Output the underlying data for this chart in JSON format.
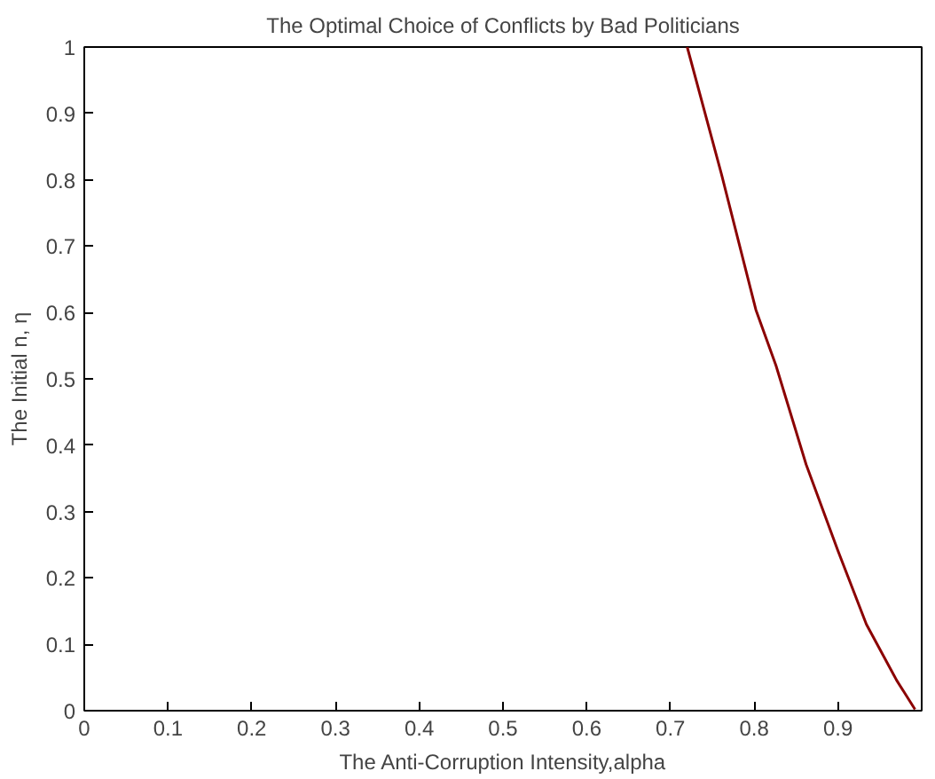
{
  "chart_data": {
    "type": "line",
    "title": "The Optimal Choice of Conflicts by Bad Politicians",
    "xlabel": "The Anti-Corruption Intensity,alpha",
    "ylabel": "The Initial n, η",
    "x": [
      0.72,
      0.761,
      0.802,
      0.826,
      0.862,
      0.9,
      0.934,
      0.97,
      0.992
    ],
    "series": [
      {
        "color": "#8b0000",
        "values": [
          1.0,
          0.808,
          0.604,
          0.52,
          0.371,
          0.241,
          0.13,
          0.046,
          0.002
        ]
      }
    ],
    "xlim": [
      0,
      1
    ],
    "ylim": [
      0,
      1
    ],
    "xticks": [
      0,
      0.1,
      0.2,
      0.3,
      0.4,
      0.5,
      0.6,
      0.7,
      0.8,
      0.9
    ],
    "yticks": [
      0,
      0.1,
      0.2,
      0.3,
      0.4,
      0.5,
      0.6,
      0.7,
      0.8,
      0.9,
      1
    ],
    "grid": false,
    "line_style": "solid",
    "marker": "none"
  }
}
